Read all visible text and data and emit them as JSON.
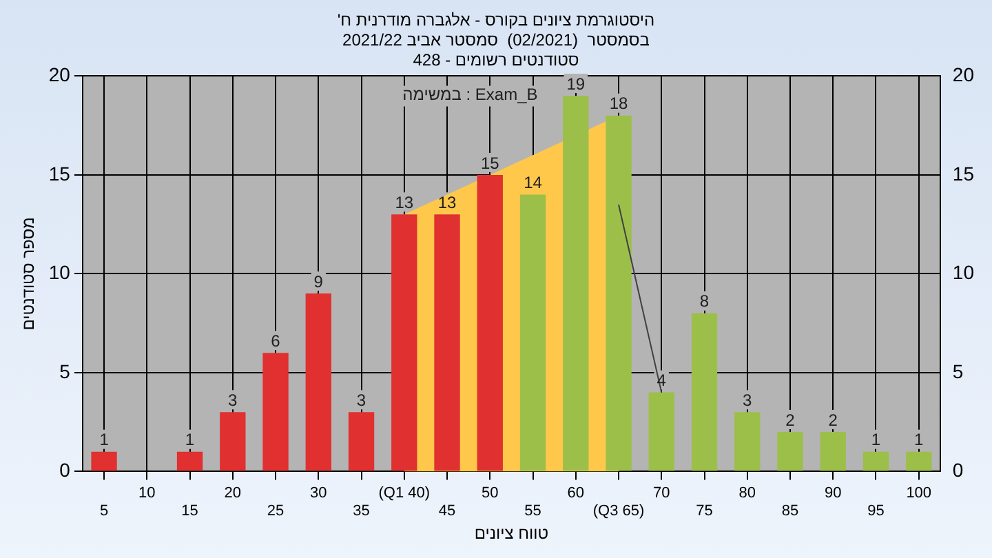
{
  "chart_data": {
    "type": "bar",
    "title": "'היסטוגרמת ציונים בקורס - אלגברה מודרנית ח\nבסמסטר  (02/2021)  סמסטר אביב 2021/22\nסטודנטים רשומים - 428",
    "xlabel": "טווח ציונים",
    "ylabel": "מספר סטודנטים",
    "annotations": [
      "במשימה : Exam_B"
    ],
    "categories": [
      "5",
      "10",
      "15",
      "20",
      "25",
      "30",
      "35",
      "(Q1 40)",
      "45",
      "50",
      "55",
      "60",
      "(Q3 65)",
      "70",
      "75",
      "80",
      "85",
      "90",
      "95",
      "100"
    ],
    "series": [
      {
        "type": "area",
        "color": "#ffc84a",
        "values": [
          null,
          null,
          null,
          null,
          null,
          null,
          null,
          13,
          14,
          null,
          16,
          null,
          18,
          null,
          null,
          null,
          null,
          null,
          null,
          null
        ]
      },
      {
        "type": "line",
        "color": "#404040",
        "values": [
          null,
          null,
          null,
          null,
          null,
          null,
          null,
          null,
          null,
          null,
          null,
          null,
          13.5,
          4,
          null,
          null,
          null,
          null,
          null,
          null
        ]
      },
      {
        "colors": [
          "#e0302f",
          "#e0302f",
          "#e0302f",
          "#e0302f",
          "#e0302f",
          "#e0302f",
          "#e0302f",
          "#e0302f",
          "#e0302f",
          "#e0302f",
          "#9cbf4a",
          "#9cbf4a",
          "#9cbf4a",
          "#9cbf4a",
          "#9cbf4a",
          "#9cbf4a",
          "#9cbf4a",
          "#9cbf4a",
          "#9cbf4a",
          "#9cbf4a"
        ],
        "values": [
          1,
          0,
          1,
          3,
          6,
          9,
          3,
          13,
          13,
          15,
          14,
          19,
          18,
          4,
          8,
          3,
          2,
          2,
          1,
          1
        ],
        "value_labels": [
          "1",
          null,
          "1",
          "3",
          "6",
          "9",
          "3",
          "13",
          "13",
          "15",
          "14",
          "19",
          "18",
          "4",
          "8",
          "3",
          "2",
          "2",
          "1",
          "1"
        ]
      }
    ],
    "ylim": [
      0,
      20
    ],
    "yticks": [
      0,
      5,
      10,
      15,
      20
    ],
    "y2lim": [
      0,
      20
    ],
    "y2ticks": [
      0,
      5,
      10,
      15,
      20
    ],
    "grid": true,
    "legend": false
  }
}
